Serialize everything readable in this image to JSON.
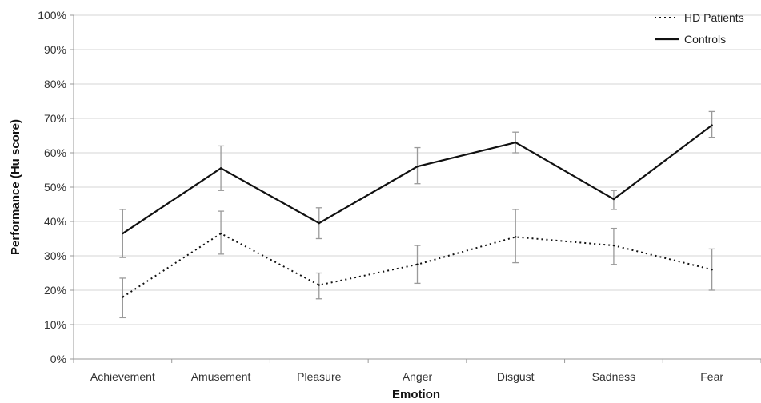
{
  "chart_data": {
    "type": "line",
    "xlabel": "Emotion",
    "ylabel": "Performance (Hu score)",
    "ylim": [
      0,
      100
    ],
    "ytick_labels": [
      "0%",
      "10%",
      "20%",
      "30%",
      "40%",
      "50%",
      "60%",
      "70%",
      "80%",
      "90%",
      "100%"
    ],
    "categories": [
      "Achievement",
      "Amusement",
      "Pleasure",
      "Anger",
      "Disgust",
      "Sadness",
      "Fear"
    ],
    "grid": true,
    "legend_position": "top-right",
    "series": [
      {
        "name": "HD Patients",
        "line_style": "dotted",
        "color": "#111111",
        "values": [
          18,
          36.5,
          21.5,
          27.5,
          35.5,
          33,
          26
        ],
        "error_low": [
          12,
          30.5,
          17.5,
          22,
          28,
          27.5,
          20
        ],
        "error_high": [
          23.5,
          43,
          25,
          33,
          43.5,
          38,
          32
        ]
      },
      {
        "name": "Controls",
        "line_style": "solid",
        "color": "#111111",
        "values": [
          36.5,
          55.5,
          39.5,
          56,
          63,
          46.5,
          68
        ],
        "error_low": [
          29.5,
          49,
          35,
          51,
          60,
          43.5,
          64.5
        ],
        "error_high": [
          43.5,
          62,
          44,
          61.5,
          66,
          49,
          72
        ]
      }
    ]
  }
}
